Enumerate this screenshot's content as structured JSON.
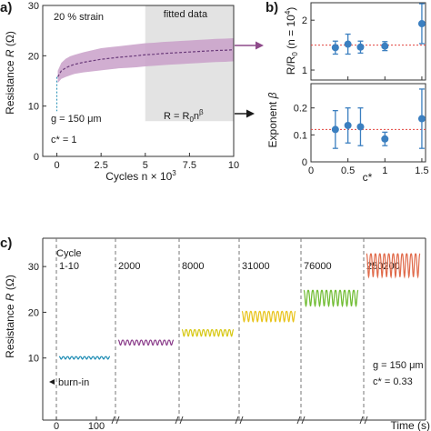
{
  "colors": {
    "band": "#c9a0c9",
    "mean_line": "#6a3a7a",
    "fitted_shade": "#e3e3e3",
    "points": "#3b7fc0",
    "ref_line": "#e2433f",
    "arrow_purple": "#8e4a8a",
    "burnin_blue": "#1e8cb4",
    "cycle_colors": [
      "#1e8cb4",
      "#8c3f8c",
      "#d7c814",
      "#e8c31a",
      "#6dbb2e",
      "#e06a4a"
    ]
  },
  "panel_labels": {
    "a": "a)",
    "b": "b)",
    "c": "c)"
  },
  "chart_data": [
    {
      "id": "a",
      "type": "area",
      "xlabel": "Cycles n × 10",
      "xlabel_sup": "3",
      "ylabel_prefix": "Resistance ",
      "ylabel_var": "R",
      "ylabel_suffix": " (Ω)",
      "xlim": [
        -0.8,
        10
      ],
      "ylim": [
        0,
        30
      ],
      "x_ticks": [
        0,
        2.5,
        5,
        7.5,
        10
      ],
      "x_tick_labels": [
        "0",
        "2.5",
        "5",
        "7.5",
        "10"
      ],
      "y_ticks": [
        0,
        10,
        20,
        30
      ],
      "y_tick_labels": [
        "0",
        "10",
        "20",
        "30"
      ],
      "fitted_region": {
        "x": [
          5,
          10
        ],
        "label": "fitted data"
      },
      "annotations": {
        "strain": "20 % strain",
        "gap": "g = 150 μm",
        "cstar": "c* = 1",
        "fit_eq": "R = R",
        "fit_eq_sub": "0",
        "fit_eq_mid": "n",
        "fit_eq_sup": "β"
      },
      "series": [
        {
          "x": [
            0.05,
            0.25,
            0.5,
            0.75,
            1,
            1.5,
            2,
            2.5,
            3,
            3.5,
            4,
            4.5,
            5,
            5.5,
            6,
            6.5,
            7,
            7.5,
            8,
            8.5,
            9,
            9.5,
            10
          ],
          "mean": [
            15.8,
            17.0,
            17.6,
            18.0,
            18.3,
            18.7,
            19.0,
            19.3,
            19.5,
            19.7,
            19.85,
            20.0,
            20.2,
            20.3,
            20.45,
            20.55,
            20.65,
            20.75,
            20.85,
            20.95,
            21.05,
            21.1,
            21.2
          ],
          "upper": [
            17.0,
            18.6,
            19.4,
            19.9,
            20.2,
            20.7,
            21.1,
            21.5,
            21.7,
            21.9,
            22.1,
            22.3,
            22.5,
            22.6,
            22.75,
            22.85,
            22.95,
            23.05,
            23.15,
            23.25,
            23.35,
            23.4,
            23.5
          ],
          "lower": [
            14.6,
            15.4,
            15.8,
            16.1,
            16.4,
            16.7,
            16.9,
            17.1,
            17.3,
            17.5,
            17.6,
            17.7,
            17.9,
            18.0,
            18.15,
            18.25,
            18.35,
            18.45,
            18.55,
            18.65,
            18.75,
            18.8,
            18.9
          ]
        }
      ]
    },
    {
      "id": "b_top",
      "type": "scatter",
      "ylabel": "R/R",
      "ylabel_sub": "0",
      "ylabel_tail": " (n = 10",
      "ylabel_sup": "4",
      "ylabel_end": ")",
      "xlim": [
        0,
        1.55
      ],
      "ylim": [
        0.8,
        2.35
      ],
      "y_ticks": [
        1,
        2
      ],
      "y_tick_labels": [
        "1",
        "2"
      ],
      "ref_value": 1.5,
      "points": [
        {
          "x": 0.33,
          "y": 1.45,
          "err": 0.13
        },
        {
          "x": 0.5,
          "y": 1.52,
          "err": 0.2
        },
        {
          "x": 0.67,
          "y": 1.46,
          "err": 0.12
        },
        {
          "x": 1.0,
          "y": 1.48,
          "err": 0.09
        },
        {
          "x": 1.5,
          "y": 1.93,
          "err": 0.4
        }
      ]
    },
    {
      "id": "b_bottom",
      "type": "scatter",
      "ylabel": "Exponent ",
      "ylabel_var": "β",
      "xlabel": "c*",
      "xlim": [
        0,
        1.55
      ],
      "ylim": [
        0,
        0.29
      ],
      "x_ticks": [
        0,
        0.5,
        1,
        1.5
      ],
      "x_tick_labels": [
        "0",
        "0.5",
        "1",
        "1.5"
      ],
      "y_ticks": [
        0,
        0.1,
        0.2
      ],
      "y_tick_labels": [
        "0",
        "0.1",
        "0.2"
      ],
      "ref_value": 0.12,
      "points": [
        {
          "x": 0.33,
          "y": 0.12,
          "err": 0.07
        },
        {
          "x": 0.5,
          "y": 0.135,
          "err": 0.065
        },
        {
          "x": 0.67,
          "y": 0.13,
          "err": 0.07
        },
        {
          "x": 1.0,
          "y": 0.085,
          "err": 0.025
        },
        {
          "x": 1.5,
          "y": 0.16,
          "err": 0.11
        }
      ]
    },
    {
      "id": "c",
      "type": "line",
      "ylabel_prefix": "Resistance ",
      "ylabel_var": "R",
      "ylabel_suffix": " (Ω)",
      "xlabel": "Time (s)",
      "ylim": [
        0,
        35
      ],
      "y_ticks": [
        10,
        20,
        30
      ],
      "y_tick_labels": [
        "10",
        "20",
        "30"
      ],
      "x_ticks": [
        0,
        100
      ],
      "x_tick_labels": [
        "0",
        "100"
      ],
      "cycle_title": "Cycle",
      "annotations": {
        "burnin": "burn-in",
        "gap": "g = 150 μm",
        "cstar": "c* = 0.33"
      },
      "segments": [
        {
          "cycle_label": "1-10",
          "base": 10.3,
          "amp": 0.6
        },
        {
          "cycle_label": "2000",
          "base": 13.9,
          "amp": 1.2
        },
        {
          "cycle_label": "8000",
          "base": 16.2,
          "amp": 1.6
        },
        {
          "cycle_label": "31000",
          "base": 20.2,
          "amp": 2.5
        },
        {
          "cycle_label": "76000",
          "base": 24.8,
          "amp": 3.8
        },
        {
          "cycle_label": "250200",
          "base": 32.8,
          "amp": 5.6
        }
      ]
    }
  ]
}
